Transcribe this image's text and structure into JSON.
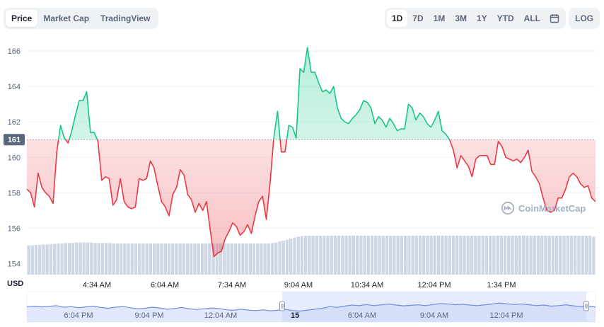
{
  "tabs": [
    {
      "label": "Price",
      "active": true
    },
    {
      "label": "Market Cap",
      "active": false
    },
    {
      "label": "TradingView",
      "active": false
    }
  ],
  "ranges": [
    {
      "label": "1D",
      "active": true
    },
    {
      "label": "7D",
      "active": false
    },
    {
      "label": "1M",
      "active": false
    },
    {
      "label": "3M",
      "active": false
    },
    {
      "label": "1Y",
      "active": false
    },
    {
      "label": "YTD",
      "active": false
    },
    {
      "label": "ALL",
      "active": false
    }
  ],
  "calendar_icon": "calendar-icon",
  "log_label": "LOG",
  "currency_label": "USD",
  "watermark": "CoinMarketCap",
  "colors": {
    "up": "#16c784",
    "down": "#ea3943",
    "volume": "#cfd6e4",
    "nav": "#6f8fe0",
    "accent": "#3861fb"
  },
  "chart_data": {
    "type": "line",
    "title": "",
    "xlabel": "",
    "ylabel": "USD",
    "ylim": [
      153.5,
      166.8
    ],
    "baseline": 161,
    "baseline_label": "161",
    "y_ticks": [
      154,
      156,
      158,
      160,
      162,
      164,
      166
    ],
    "x_ticks": [
      "4:34 AM",
      "6:04 AM",
      "7:34 AM",
      "9:04 AM",
      "10:34 AM",
      "12:04 PM",
      "1:34 PM"
    ],
    "series": [
      {
        "values": [
          158.2,
          158.0,
          157.2,
          159.1,
          158.3,
          158.0,
          157.8,
          157.4,
          160.3,
          161.8,
          161.1,
          160.8,
          161.5,
          162.4,
          163.2,
          163.2,
          163.7,
          161.4,
          161.4,
          160.9,
          158.7,
          158.9,
          158.8,
          157.3,
          157.6,
          158.8,
          157.5,
          157.2,
          157.1,
          157.2,
          158.8,
          158.7,
          158.8,
          159.8,
          159.4,
          158.4,
          157.5,
          157.2,
          156.7,
          157.9,
          158.3,
          159.3,
          159.0,
          157.9,
          157.6,
          156.9,
          157.4,
          157.0,
          157.5,
          155.9,
          154.4,
          154.6,
          154.7,
          155.4,
          155.8,
          156.3,
          156.1,
          155.6,
          155.8,
          156.2,
          155.7,
          156.7,
          157.5,
          157.8,
          156.5,
          158.5,
          161.1,
          162.6,
          160.3,
          160.3,
          161.8,
          161.7,
          161.1,
          165.0,
          164.8,
          166.2,
          164.8,
          164.8,
          164.2,
          163.7,
          163.8,
          163.6,
          164.0,
          162.8,
          162.2,
          162.0,
          161.9,
          162.2,
          162.4,
          162.7,
          163.2,
          163.1,
          162.8,
          161.9,
          162.3,
          162.1,
          161.7,
          162.2,
          161.9,
          161.5,
          161.6,
          161.6,
          163.0,
          162.8,
          162.1,
          162.5,
          162.3,
          161.9,
          161.7,
          162.1,
          162.6,
          161.5,
          161.3,
          161.0,
          160.4,
          159.4,
          160.1,
          159.8,
          159.5,
          158.9,
          159.9,
          160.1,
          160.1,
          160.1,
          159.6,
          159.6,
          160.9,
          160.6,
          160.0,
          159.9,
          159.8,
          159.9,
          159.7,
          160.0,
          160.4,
          159.2,
          158.9,
          158.5,
          157.7,
          157.0,
          156.9,
          157.0,
          157.7,
          157.7,
          158.2,
          158.9,
          159.1,
          158.9,
          158.5,
          158.3,
          158.4,
          157.7,
          157.5
        ]
      }
    ],
    "volume_values": [
      0.6,
      0.6,
      0.61,
      0.61,
      0.62,
      0.62,
      0.63,
      0.63,
      0.64,
      0.64,
      0.65,
      0.65,
      0.65,
      0.66,
      0.66,
      0.66,
      0.66,
      0.66,
      0.65,
      0.65,
      0.65,
      0.65,
      0.65,
      0.64,
      0.64,
      0.64,
      0.64,
      0.64,
      0.64,
      0.64,
      0.64,
      0.64,
      0.64,
      0.64,
      0.64,
      0.64,
      0.64,
      0.64,
      0.64,
      0.64,
      0.64,
      0.64,
      0.64,
      0.64,
      0.64,
      0.64,
      0.64,
      0.64,
      0.64,
      0.64,
      0.64,
      0.64,
      0.64,
      0.64,
      0.64,
      0.64,
      0.64,
      0.64,
      0.64,
      0.64,
      0.64,
      0.64,
      0.64,
      0.64,
      0.64,
      0.64,
      0.65,
      0.66,
      0.68,
      0.7,
      0.72,
      0.74,
      0.76,
      0.78,
      0.79,
      0.8,
      0.8,
      0.8,
      0.8,
      0.8,
      0.8,
      0.8,
      0.8,
      0.8,
      0.8,
      0.8,
      0.8,
      0.8,
      0.8,
      0.8,
      0.8,
      0.8,
      0.8,
      0.8,
      0.8,
      0.8,
      0.8,
      0.8,
      0.8,
      0.8,
      0.8,
      0.8,
      0.8,
      0.8,
      0.8,
      0.8,
      0.8,
      0.8,
      0.8,
      0.8,
      0.8,
      0.8,
      0.8,
      0.8,
      0.8,
      0.8,
      0.8,
      0.8,
      0.8,
      0.8,
      0.8,
      0.8,
      0.8,
      0.8,
      0.8,
      0.8,
      0.8,
      0.8,
      0.8,
      0.8,
      0.8,
      0.8,
      0.8,
      0.8,
      0.8,
      0.8,
      0.8,
      0.8,
      0.8,
      0.8,
      0.8,
      0.8,
      0.8,
      0.8,
      0.8,
      0.8,
      0.8,
      0.8,
      0.8,
      0.8,
      0.8,
      0.8,
      0.8,
      0.78
    ],
    "navigator": {
      "x_ticks": [
        "6:04 PM",
        "9:04 PM",
        "12:04 AM",
        "15",
        "6:04 AM",
        "9:04 AM",
        "12:04 PM"
      ],
      "values": [
        0.48,
        0.5,
        0.47,
        0.49,
        0.52,
        0.46,
        0.48,
        0.44,
        0.47,
        0.5,
        0.45,
        0.42,
        0.46,
        0.48,
        0.44,
        0.4,
        0.42,
        0.46,
        0.43,
        0.38,
        0.41,
        0.45,
        0.4,
        0.37,
        0.4,
        0.43,
        0.41,
        0.36,
        0.34,
        0.38,
        0.35,
        0.33,
        0.36,
        0.32,
        0.34,
        0.37,
        0.33,
        0.31,
        0.35,
        0.38,
        0.42,
        0.48,
        0.45,
        0.5,
        0.54,
        0.52,
        0.56,
        0.52,
        0.55,
        0.58,
        0.54,
        0.51,
        0.53,
        0.55,
        0.52,
        0.56,
        0.6,
        0.58,
        0.55,
        0.57,
        0.54,
        0.52,
        0.55,
        0.58,
        0.62,
        0.59,
        0.56,
        0.58,
        0.55,
        0.52,
        0.54,
        0.5,
        0.52,
        0.55,
        0.51,
        0.48,
        0.5,
        0.47
      ]
    }
  }
}
